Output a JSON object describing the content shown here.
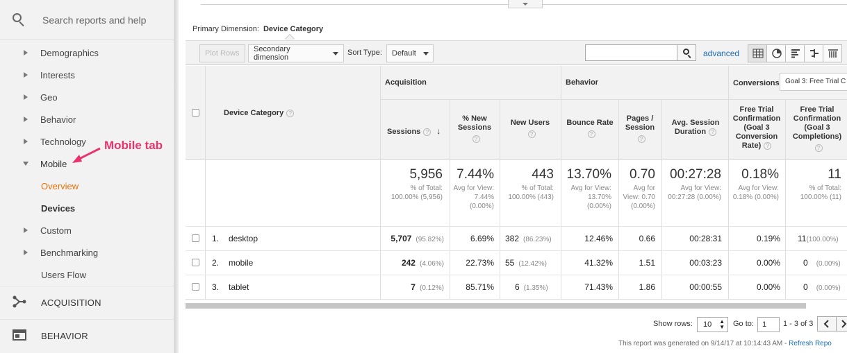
{
  "sidebar": {
    "search_placeholder": "Search reports and help",
    "items": [
      {
        "label": "Demographics"
      },
      {
        "label": "Interests"
      },
      {
        "label": "Geo"
      },
      {
        "label": "Behavior"
      },
      {
        "label": "Technology"
      },
      {
        "label": "Mobile"
      },
      {
        "label": "Overview"
      },
      {
        "label": "Devices"
      },
      {
        "label": "Custom"
      },
      {
        "label": "Benchmarking"
      },
      {
        "label": "Users Flow"
      }
    ],
    "sections": [
      {
        "label": "ACQUISITION",
        "icon": "acquisition-icon"
      },
      {
        "label": "BEHAVIOR",
        "icon": "behavior-icon"
      }
    ],
    "annotation": "Mobile tab"
  },
  "report": {
    "primary_dimension_label": "Primary Dimension:",
    "primary_dimension_value": "Device Category",
    "toolbar": {
      "plot_rows": "Plot Rows",
      "secondary_dimension": "Secondary dimension",
      "sort_type_label": "Sort Type:",
      "sort_type_value": "Default",
      "advanced": "advanced"
    },
    "groups": {
      "acquisition": "Acquisition",
      "behavior": "Behavior",
      "conversions": "Conversions",
      "goal_select": "Goal 3: Free Trial C"
    },
    "columns": {
      "dimension": "Device Category",
      "sessions": "Sessions",
      "new_sessions": "% New Sessions",
      "new_users": "New Users",
      "bounce_rate": "Bounce Rate",
      "pages_session": "Pages / Session",
      "avg_duration": "Avg. Session Duration",
      "conv_rate": "Free Trial Confirmation (Goal 3 Conversion Rate)",
      "completions": "Free Trial Confirmation (Goal 3 Completions)"
    },
    "totals": {
      "sessions": "5,956",
      "sessions_sub": "% of Total: 100.00% (5,956)",
      "new_sessions": "7.44%",
      "new_sessions_sub": "Avg for View: 7.44% (0.00%)",
      "new_users": "443",
      "new_users_sub": "% of Total: 100.00% (443)",
      "bounce_rate": "13.70%",
      "bounce_rate_sub": "Avg for View: 13.70% (0.00%)",
      "pages": "0.70",
      "pages_sub": "Avg for View: 0.70 (0.00%)",
      "duration": "00:27:28",
      "duration_sub": "Avg for View: 00:27:28 (0.00%)",
      "conv_rate": "0.18%",
      "conv_rate_sub": "Avg for View: 0.18% (0.00%)",
      "completions": "11",
      "completions_sub": "% of Total: 100.00% (11)"
    },
    "rows": [
      {
        "idx": "1.",
        "name": "desktop",
        "sessions": "5,707",
        "sessions_pct": "(95.82%)",
        "new_sessions": "6.69%",
        "new_users": "382",
        "new_users_pct": "(86.23%)",
        "bounce": "12.46%",
        "pages": "0.66",
        "duration": "00:28:31",
        "conv": "0.19%",
        "comp": "11",
        "comp_pct": "(100.00%)"
      },
      {
        "idx": "2.",
        "name": "mobile",
        "sessions": "242",
        "sessions_pct": "(4.06%)",
        "new_sessions": "22.73%",
        "new_users": "55",
        "new_users_pct": "(12.42%)",
        "bounce": "41.32%",
        "pages": "1.51",
        "duration": "00:03:23",
        "conv": "0.00%",
        "comp": "0",
        "comp_pct": "(0.00%)"
      },
      {
        "idx": "3.",
        "name": "tablet",
        "sessions": "7",
        "sessions_pct": "(0.12%)",
        "new_sessions": "85.71%",
        "new_users": "6",
        "new_users_pct": "(1.35%)",
        "bounce": "71.43%",
        "pages": "1.86",
        "duration": "00:00:55",
        "conv": "0.00%",
        "comp": "0",
        "comp_pct": "(0.00%)"
      }
    ],
    "footer": {
      "show_rows_label": "Show rows:",
      "show_rows_value": "10",
      "goto_label": "Go to:",
      "goto_value": "1",
      "range": "1 - 3 of 3",
      "generated": "This report was generated on 9/14/17 at 10:14:43 AM - ",
      "refresh": "Refresh Repo"
    }
  }
}
